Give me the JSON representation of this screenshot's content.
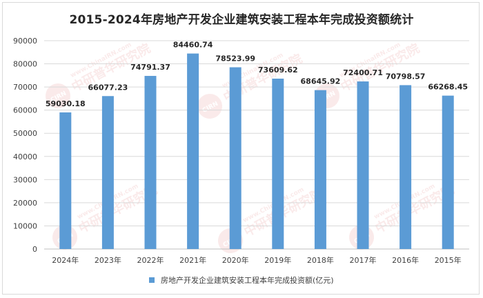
{
  "chart_data": {
    "type": "bar",
    "title": "2015-2024年房地产开发企业建筑安装工程本年完成投资额统计",
    "categories": [
      "2024年",
      "2023年",
      "2022年",
      "2021年",
      "2020年",
      "2019年",
      "2018年",
      "2017年",
      "2016年",
      "2015年"
    ],
    "series": [
      {
        "name": "房地产开发企业建筑安装工程本年完成投资额(亿元)",
        "values": [
          59030.18,
          66077.23,
          74791.37,
          84460.74,
          78523.99,
          73609.62,
          68645.92,
          72400.71,
          70798.57,
          66268.45
        ],
        "color": "#5b9bd5"
      }
    ],
    "data_labels": [
      "59030.18",
      "66077.23",
      "74791.37",
      "84460.74",
      "78523.99",
      "73609.62",
      "68645.92",
      "72400.71",
      "70798.57",
      "66268.45"
    ],
    "ylim": [
      0,
      90000
    ],
    "yticks": [
      0,
      10000,
      20000,
      30000,
      40000,
      50000,
      60000,
      70000,
      80000,
      90000
    ],
    "grid": true,
    "legend_position": "bottom"
  },
  "watermark": {
    "logo_text": "CIRN",
    "brand_cn": "中研普华研究院",
    "url": "www.ChinaIRN.com"
  }
}
